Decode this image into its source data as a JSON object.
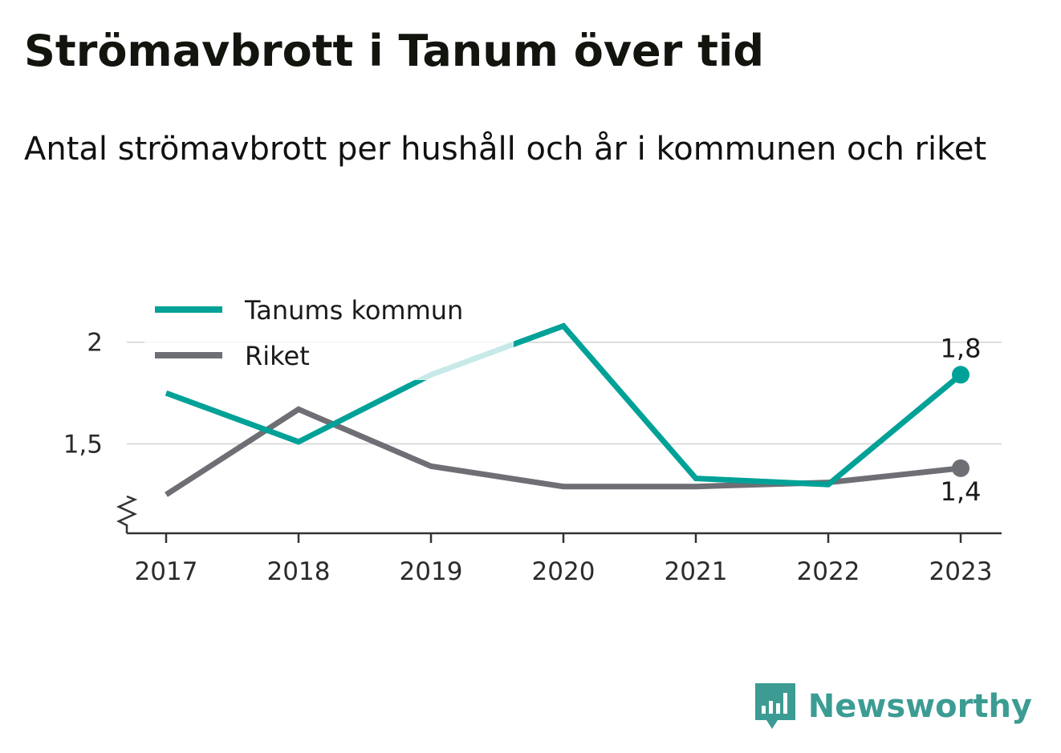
{
  "title": "Strömavbrott i Tanum över tid",
  "subtitle": "Antal strömavbrott per hushåll och år i kommunen och riket",
  "brand": {
    "name": "Newsworthy",
    "logo_icon": "newsworthy-logo-icon",
    "color": "#3c9c93"
  },
  "chart_data": {
    "type": "line",
    "categories": [
      "2017",
      "2018",
      "2019",
      "2020",
      "2021",
      "2022",
      "2023"
    ],
    "x": [
      2017,
      2018,
      2019,
      2020,
      2021,
      2022,
      2023
    ],
    "series": [
      {
        "name": "Tanums kommun",
        "color": "#00a197",
        "values": [
          1.75,
          1.51,
          1.84,
          2.08,
          1.33,
          1.3,
          1.84
        ],
        "end_label": "1,8"
      },
      {
        "name": "Riket",
        "color": "#6e6e75",
        "values": [
          1.25,
          1.67,
          1.39,
          1.29,
          1.29,
          1.31,
          1.38
        ],
        "end_label": "1,4"
      }
    ],
    "y_ticks": [
      {
        "value": 2,
        "label": "2"
      },
      {
        "value": 1.5,
        "label": "1,5"
      }
    ],
    "ylim": [
      1.06,
      2.5
    ],
    "y_axis_break": true,
    "grid": true,
    "legend_position": "top-left",
    "xlabel": "",
    "ylabel": ""
  }
}
